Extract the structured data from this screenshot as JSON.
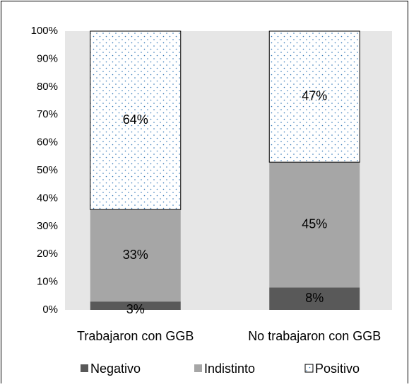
{
  "chart_data": {
    "type": "stacked_bar",
    "categories": [
      "Trabajaron con GGB",
      "No trabajaron con GGB"
    ],
    "series": [
      {
        "name": "Negativo",
        "color": "#595959",
        "values": [
          3,
          8
        ],
        "value_labels": [
          "3%",
          "8%"
        ]
      },
      {
        "name": "Indistinto",
        "color": "#a6a6a6",
        "values": [
          33,
          45
        ],
        "value_labels": [
          "33%",
          "45%"
        ]
      },
      {
        "name": "Positivo",
        "color": "#ffffff",
        "pattern": "dots",
        "values": [
          64,
          47
        ],
        "value_labels": [
          "64%",
          "47%"
        ]
      }
    ],
    "ylim": [
      0,
      100
    ],
    "yticks": [
      {
        "value": 0,
        "label": "0%"
      },
      {
        "value": 10,
        "label": "10%"
      },
      {
        "value": 20,
        "label": "20%"
      },
      {
        "value": 30,
        "label": "30%"
      },
      {
        "value": 40,
        "label": "40%"
      },
      {
        "value": 50,
        "label": "50%"
      },
      {
        "value": 60,
        "label": "60%"
      },
      {
        "value": 70,
        "label": "70%"
      },
      {
        "value": 80,
        "label": "80%"
      },
      {
        "value": 90,
        "label": "90%"
      },
      {
        "value": 100,
        "label": "100%"
      }
    ],
    "legend": "bottom"
  }
}
